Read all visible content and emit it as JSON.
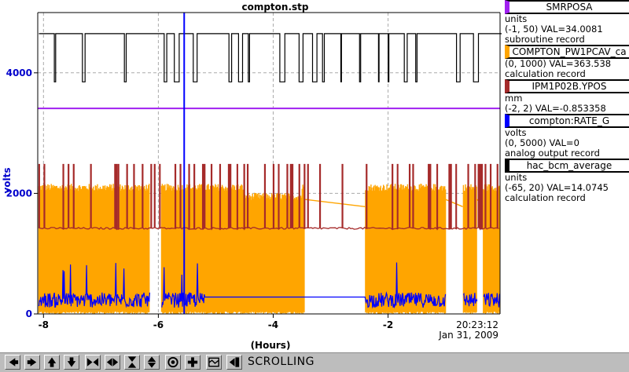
{
  "plot": {
    "title": "compton.stp",
    "y_axis_label": "volts",
    "x_axis_label": "(Hours)",
    "time_label": "20:23:12",
    "date_label": "Jan 31, 2009",
    "y_ticks": [
      "0",
      "2000",
      "4000"
    ],
    "x_ticks": [
      "-8",
      "-6",
      "-4",
      "-2"
    ]
  },
  "legend": [
    {
      "name": "SMRPOSA",
      "color": "#a020f0",
      "lines": [
        "units",
        "(-1, 50) VAL=34.0081",
        "subroutine record"
      ]
    },
    {
      "name": "COMPTON_PW1PCAV_ca",
      "color": "#ffa500",
      "lines": [
        "(0, 1000) VAL=363.538",
        "calculation record"
      ]
    },
    {
      "name": "IPM1P02B.YPOS",
      "color": "#a52a2a",
      "lines": [
        "mm",
        "(-2, 2) VAL=-0.853358"
      ]
    },
    {
      "name": "compton:RATE_G",
      "color": "#0000ff",
      "lines": [
        "volts",
        "(0, 5000) VAL=0",
        "analog output record"
      ]
    },
    {
      "name": "hac_bcm_average",
      "color": "#000000",
      "lines": [
        "units",
        "(-65, 20) VAL=14.0745",
        "calculation record"
      ]
    }
  ],
  "toolbar": {
    "status": "SCROLLING",
    "buttons": [
      "arrow-left-icon",
      "arrow-right-icon",
      "arrow-up-icon",
      "arrow-down-icon",
      "zoom-in-x-icon",
      "zoom-out-x-icon",
      "zoom-in-y-icon",
      "zoom-out-y-icon",
      "stop-icon",
      "add-icon",
      "config-icon",
      "back-icon"
    ]
  },
  "chart_data": {
    "type": "line",
    "title": "compton.stp",
    "xlabel": "(Hours)",
    "ylabel": "volts",
    "xlim": [
      -8.1,
      -0.05
    ],
    "ylim": [
      0,
      5000
    ],
    "grid": true,
    "y_ticks": [
      0,
      2000,
      4000
    ],
    "x_ticks": [
      -8,
      -6,
      -4,
      -2
    ],
    "series": [
      {
        "name": "hac_bcm_average",
        "color": "#000000",
        "behavior": "toggles between two levels",
        "levels": [
          3850,
          4650
        ]
      },
      {
        "name": "SMRPOSA",
        "color": "#a020f0",
        "behavior": "constant",
        "levels": [
          3410
        ]
      },
      {
        "name": "COMPTON_PW1PCAV_ca",
        "color": "#ffa500",
        "behavior": "dense oscillation with gaps",
        "levels": [
          0,
          2100
        ],
        "gaps": [
          [
            -6.15,
            -5.95
          ],
          [
            -3.45,
            -2.4
          ],
          [
            -1.0,
            -0.7
          ],
          [
            -0.45,
            -0.35
          ]
        ]
      },
      {
        "name": "IPM1P02B.YPOS",
        "color": "#a52a2a",
        "behavior": "baseline with spikes",
        "levels": [
          1420,
          2480
        ]
      },
      {
        "name": "compton:RATE_G",
        "color": "#0000ff",
        "behavior": "noisy low level",
        "levels": [
          180,
          300
        ],
        "cursor_x": -5.55
      }
    ]
  }
}
